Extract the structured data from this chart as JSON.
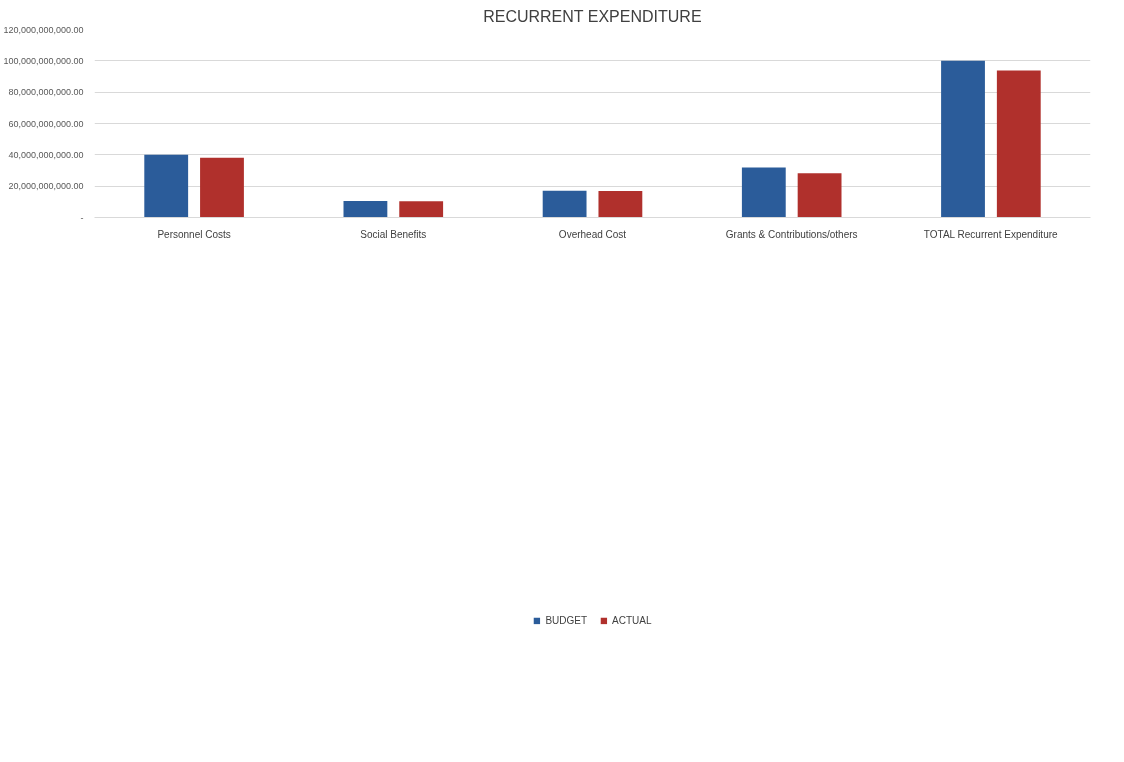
{
  "chart_data": {
    "type": "bar",
    "title": "RECURRENT EXPENDITURE",
    "categories": [
      "Personnel Costs",
      "Social Benefits",
      "Overhead Cost",
      "Grants & Contributions/others",
      "TOTAL Recurrent Expenditure"
    ],
    "series": [
      {
        "name": "BUDGET",
        "color": "#2b5c9a",
        "values": [
          40000000000,
          10600000000,
          17100000000,
          31900000000,
          100000000000
        ]
      },
      {
        "name": "ACTUAL",
        "color": "#b0302c",
        "values": [
          38200000000,
          10300000000,
          16900000000,
          28200000000,
          93900000000
        ]
      }
    ],
    "ylim": [
      0,
      120000000000
    ],
    "yticks": [
      {
        "value": 0,
        "label": "-"
      },
      {
        "value": 20000000000,
        "label": "20,000,000,000.00"
      },
      {
        "value": 40000000000,
        "label": "40,000,000,000.00"
      },
      {
        "value": 60000000000,
        "label": "60,000,000,000.00"
      },
      {
        "value": 80000000000,
        "label": "80,000,000,000.00"
      },
      {
        "value": 100000000000,
        "label": "100,000,000,000.00"
      },
      {
        "value": 120000000000,
        "label": "120,000,000,000.00"
      }
    ],
    "grid": "y",
    "legend": "bottom"
  }
}
